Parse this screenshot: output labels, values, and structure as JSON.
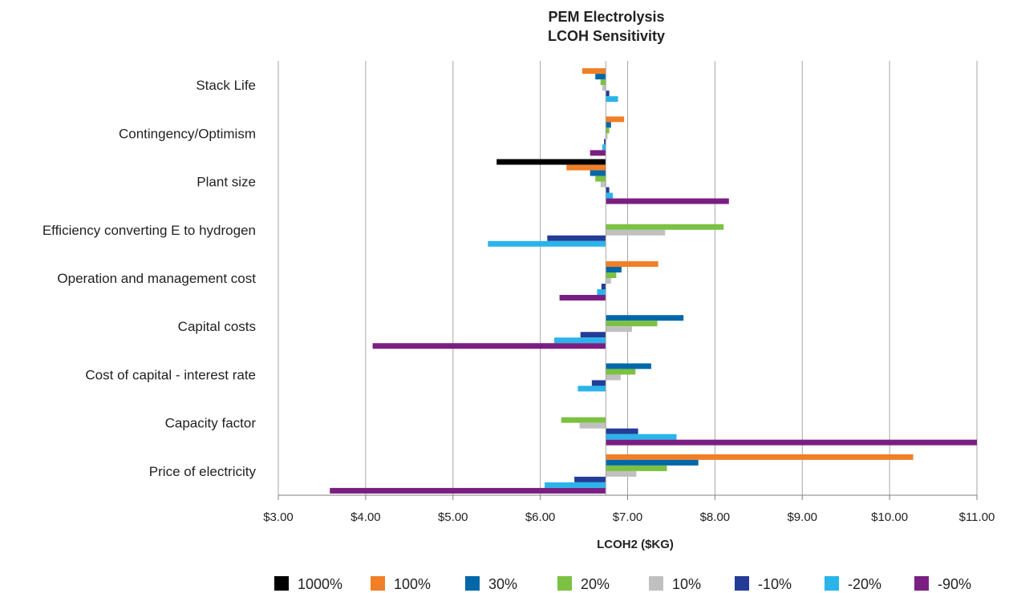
{
  "chart_data": {
    "type": "bar",
    "orientation": "horizontal",
    "title_lines": [
      "PEM Electrolysis",
      "LCOH  Sensitivity"
    ],
    "xlabel": "LCOH2 ($KG)",
    "ylabel": "",
    "baseline": 6.75,
    "xlim": [
      3,
      11
    ],
    "xticks": [
      3,
      4,
      5,
      6,
      7,
      8,
      9,
      10,
      11
    ],
    "xtick_labels": [
      "$3.00",
      "$4.00",
      "$5.00",
      "$6.00",
      "$7.00",
      "$8.00",
      "$9.00",
      "$10.00",
      "$11.00"
    ],
    "grid": "vertical",
    "legend_position": "bottom",
    "categories": [
      "Stack Life",
      "Contingency/Optimism",
      "Plant size",
      "Efficiency converting E to hydrogen",
      "Operation and management cost",
      "Capital costs",
      "Cost of capital - interest rate",
      "Capacity factor",
      "Price of electricity"
    ],
    "series": [
      {
        "name": "1000%",
        "color": "#000000",
        "values": [
          null,
          null,
          5.5,
          null,
          null,
          null,
          null,
          null,
          null
        ]
      },
      {
        "name": "100%",
        "color": "#f07f27",
        "values": [
          6.48,
          6.96,
          6.3,
          null,
          7.35,
          null,
          null,
          null,
          10.27
        ]
      },
      {
        "name": "30%",
        "color": "#0068a8",
        "values": [
          6.63,
          6.81,
          6.57,
          null,
          6.93,
          7.64,
          7.27,
          null,
          7.81
        ]
      },
      {
        "name": "20%",
        "color": "#7cc142",
        "values": [
          6.69,
          6.79,
          6.63,
          8.1,
          6.87,
          7.34,
          7.09,
          6.24,
          7.45
        ]
      },
      {
        "name": "10%",
        "color": "#c0c0c0",
        "values": [
          6.71,
          6.77,
          6.69,
          7.43,
          6.81,
          7.05,
          6.92,
          6.45,
          7.1
        ]
      },
      {
        "name": "-10%",
        "color": "#243c96",
        "values": [
          6.79,
          6.73,
          6.79,
          6.08,
          6.7,
          6.46,
          6.59,
          7.12,
          6.39
        ]
      },
      {
        "name": "-20%",
        "color": "#2ab4ea",
        "values": [
          6.89,
          6.71,
          6.83,
          5.4,
          6.65,
          6.16,
          6.43,
          7.56,
          6.05
        ]
      },
      {
        "name": "-90%",
        "color": "#7a1f82",
        "values": [
          null,
          6.57,
          8.16,
          null,
          6.22,
          4.08,
          null,
          11.0,
          3.59
        ]
      }
    ]
  }
}
